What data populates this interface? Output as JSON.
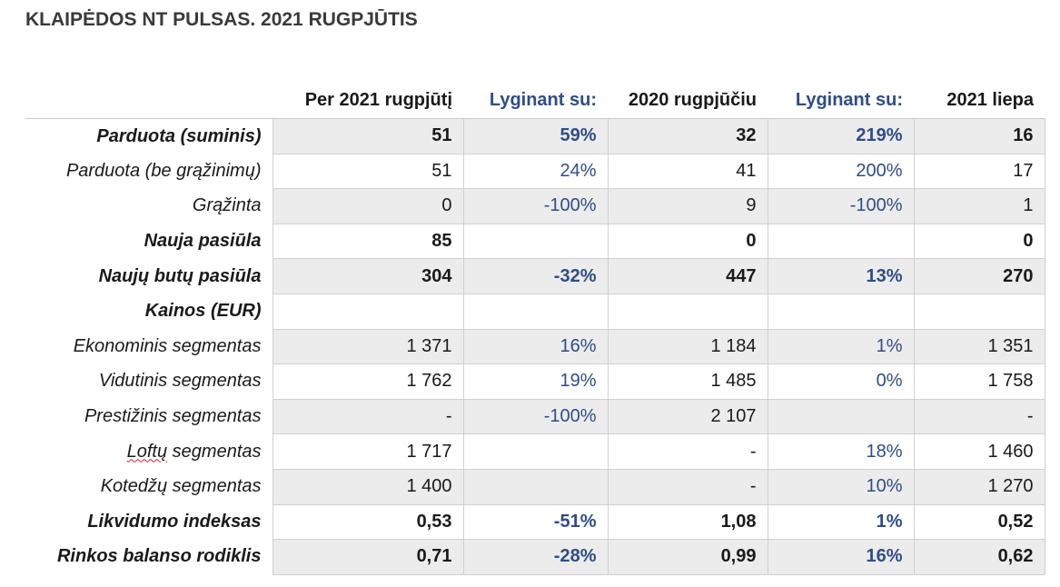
{
  "title": "KLAIPĖDOS NT PULSAS. 2021 RUGPJŪTIS",
  "columns": [
    "Per 2021 rugpjūtį",
    "Lyginant su:",
    "2020 rugpjūčiu",
    "Lyginant su:",
    "2021 liepa"
  ],
  "rows": [
    {
      "label": "Parduota (suminis)",
      "c": [
        "51",
        "59%",
        "32",
        "219%",
        "16"
      ]
    },
    {
      "label": "Parduota (be grąžinimų)",
      "c": [
        "51",
        "24%",
        "41",
        "200%",
        "17"
      ]
    },
    {
      "label": "Grąžinta",
      "c": [
        "0",
        "-100%",
        "9",
        "-100%",
        "1"
      ]
    },
    {
      "label": "Nauja pasiūla",
      "c": [
        "85",
        "",
        "0",
        "",
        "0"
      ]
    },
    {
      "label": "Naujų butų pasiūla",
      "c": [
        "304",
        "-32%",
        "447",
        "13%",
        "270"
      ]
    },
    {
      "label": "Kainos (EUR)",
      "c": [
        "",
        "",
        "",
        "",
        ""
      ]
    },
    {
      "label": "Ekonominis segmentas",
      "c": [
        "1 371",
        "16%",
        "1 184",
        "1%",
        "1 351"
      ]
    },
    {
      "label": "Vidutinis segmentas",
      "c": [
        "1 762",
        "19%",
        "1 485",
        "0%",
        "1 758"
      ]
    },
    {
      "label": "Prestižinis segmentas",
      "c": [
        "-",
        "-100%",
        "2 107",
        "",
        "-"
      ]
    },
    {
      "label_a": "Loftų",
      "label_b": " segmentas",
      "c": [
        "1 717",
        "",
        "-",
        "18%",
        "1 460"
      ]
    },
    {
      "label": "Kotedžų segmentas",
      "c": [
        "1 400",
        "",
        "-",
        "10%",
        "1 270"
      ]
    },
    {
      "label": "Likvidumo indeksas",
      "c": [
        "0,53",
        "-51%",
        "1,08",
        "1%",
        "0,52"
      ]
    },
    {
      "label": "Rinkos balanso rodiklis",
      "c": [
        "0,71",
        "-28%",
        "0,99",
        "16%",
        "0,62"
      ]
    }
  ]
}
